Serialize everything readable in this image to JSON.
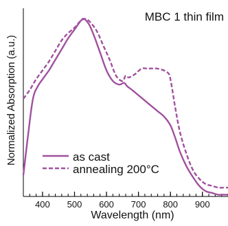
{
  "chart_data": {
    "type": "line",
    "title": "MBC 1 thin film",
    "xlabel": "Wavelength (nm)",
    "ylabel": "Normalized Absorption (a.u.)",
    "xlim": [
      340,
      980
    ],
    "ylim": [
      0,
      1.06
    ],
    "xticks": [
      400,
      500,
      600,
      700,
      800,
      900
    ],
    "grid": false,
    "legend": "bottom-left",
    "colors": {
      "series": "#a0509e",
      "axis": "#000000",
      "text": "#111111"
    },
    "series": [
      {
        "name": "as cast",
        "style": "solid",
        "x": [
          340,
          355,
          370,
          385,
          400,
          420,
          440,
          460,
          480,
          500,
          520,
          530,
          545,
          560,
          580,
          600,
          620,
          640,
          655,
          665,
          680,
          700,
          720,
          740,
          760,
          780,
          800,
          815,
          830,
          850,
          870,
          890,
          910,
          930,
          950,
          970,
          980
        ],
        "y": [
          0.12,
          0.35,
          0.55,
          0.62,
          0.66,
          0.71,
          0.77,
          0.83,
          0.89,
          0.94,
          0.99,
          1.0,
          0.97,
          0.91,
          0.81,
          0.71,
          0.65,
          0.63,
          0.64,
          0.62,
          0.6,
          0.57,
          0.54,
          0.51,
          0.48,
          0.45,
          0.4,
          0.33,
          0.25,
          0.17,
          0.11,
          0.06,
          0.03,
          0.02,
          0.01,
          0.01,
          0.01
        ]
      },
      {
        "name": "annealing 200°C",
        "style": "dashed",
        "x": [
          340,
          360,
          380,
          400,
          420,
          440,
          460,
          480,
          500,
          520,
          535,
          550,
          570,
          590,
          610,
          630,
          650,
          660,
          670,
          690,
          710,
          730,
          760,
          790,
          800,
          815,
          830,
          850,
          870,
          890,
          910,
          930,
          950,
          970,
          980
        ],
        "y": [
          0.55,
          0.6,
          0.66,
          0.71,
          0.76,
          0.82,
          0.88,
          0.92,
          0.95,
          0.99,
          1.0,
          0.98,
          0.93,
          0.85,
          0.77,
          0.68,
          0.65,
          0.68,
          0.67,
          0.69,
          0.72,
          0.72,
          0.72,
          0.7,
          0.66,
          0.5,
          0.36,
          0.24,
          0.15,
          0.1,
          0.07,
          0.06,
          0.05,
          0.05,
          0.05
        ]
      }
    ]
  }
}
